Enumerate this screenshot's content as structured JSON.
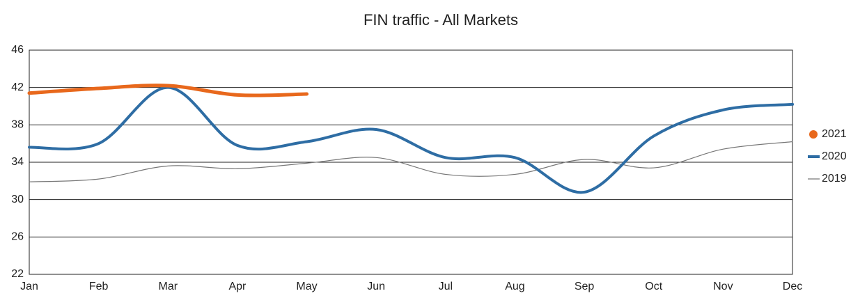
{
  "chart_data": {
    "type": "line",
    "title": "FIN traffic - All Markets",
    "categories": [
      "Jan",
      "Feb",
      "Mar",
      "Apr",
      "May",
      "Jun",
      "Jul",
      "Aug",
      "Sep",
      "Oct",
      "Nov",
      "Dec"
    ],
    "series": [
      {
        "name": "2021",
        "color": "#e8681c",
        "values": [
          41.4,
          41.9,
          42.2,
          41.2,
          41.3,
          null,
          null,
          null,
          null,
          null,
          null,
          null
        ]
      },
      {
        "name": "2020",
        "color": "#2e6da4",
        "values": [
          35.6,
          36.0,
          42.0,
          35.8,
          36.2,
          37.5,
          34.5,
          34.5,
          30.8,
          36.8,
          39.6,
          40.2
        ]
      },
      {
        "name": "2019",
        "color": "#777777",
        "values": [
          31.9,
          32.2,
          33.6,
          33.3,
          33.9,
          34.5,
          32.7,
          32.7,
          34.3,
          33.4,
          35.4,
          36.2
        ]
      }
    ],
    "ylim": [
      22,
      46
    ],
    "yticks": [
      22,
      26,
      30,
      34,
      38,
      42,
      46
    ],
    "grid": true,
    "legend": "right"
  }
}
